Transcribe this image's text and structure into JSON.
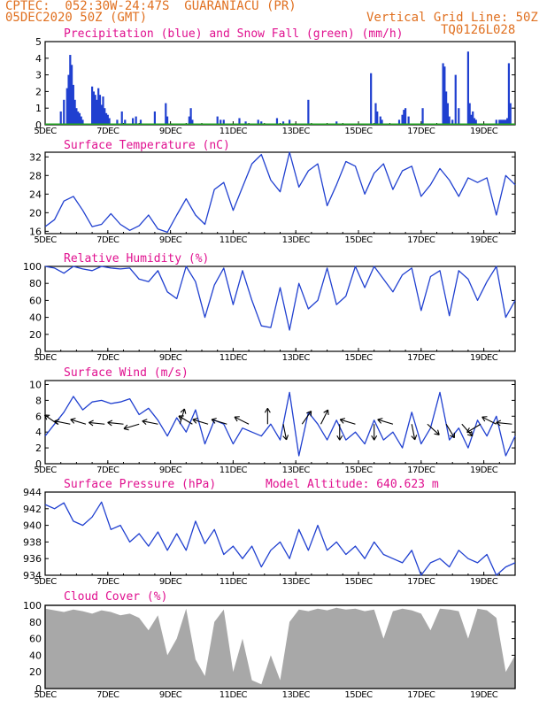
{
  "header": {
    "line1_left": "CPTEC:  052:30W-24:47S  GUARANIACU (PR)",
    "line2_left": "05DEC2020 50Z (GMT)",
    "line1_right": "Vertical Grid Line: 50Z",
    "line2_right": "TQ0126L028"
  },
  "x_tick_labels": [
    "5DEC",
    "7DEC",
    "9DEC",
    "11DEC",
    "13DEC",
    "15DEC",
    "17DEC",
    "19DEC"
  ],
  "panel_colors": {
    "series": "#2040d0",
    "snow": "#20a020",
    "cloud": "#a8a8a8",
    "title": "#e0108f",
    "header": "#e07020"
  },
  "chart_data": [
    {
      "id": "precip",
      "type": "bar",
      "title": "Precipitation (blue) and Snow Fall (green) (mm/h)",
      "ylim": [
        0,
        5
      ],
      "yticks": [
        "0",
        "1",
        "2",
        "3",
        "4",
        "5"
      ],
      "x_range_days": [
        5,
        20
      ],
      "series": [
        {
          "name": "Precipitation",
          "x": [
            5.5,
            5.6,
            5.7,
            5.75,
            5.8,
            5.85,
            5.9,
            5.95,
            6.0,
            6.05,
            6.1,
            6.15,
            6.2,
            6.5,
            6.55,
            6.6,
            6.65,
            6.7,
            6.75,
            6.8,
            6.85,
            6.9,
            6.95,
            7.0,
            7.05,
            7.3,
            7.45,
            7.55,
            7.8,
            7.9,
            8.05,
            8.5,
            8.85,
            8.9,
            9.6,
            9.65,
            9.7,
            10.5,
            10.6,
            10.7,
            11.2,
            11.4,
            11.8,
            11.9,
            12.4,
            12.6,
            12.8,
            13.4,
            14.3,
            15.4,
            15.55,
            15.6,
            15.7,
            15.75,
            16.3,
            16.4,
            16.45,
            16.5,
            16.6,
            17.05,
            17.7,
            17.75,
            17.8,
            17.85,
            17.9,
            18.0,
            18.1,
            18.2,
            18.5,
            18.55,
            18.6,
            18.65,
            18.7,
            18.75,
            19.4,
            19.5,
            19.55,
            19.6,
            19.65,
            19.7,
            19.75,
            19.8,
            19.85
          ],
          "values": [
            0.8,
            1.5,
            2.2,
            3.0,
            4.2,
            3.6,
            2.4,
            1.5,
            1.0,
            0.8,
            0.7,
            0.5,
            0.3,
            2.3,
            2.0,
            1.8,
            1.5,
            2.2,
            1.8,
            1.2,
            1.7,
            1.0,
            0.7,
            0.6,
            0.4,
            0.3,
            0.8,
            0.3,
            0.4,
            0.5,
            0.3,
            0.8,
            1.3,
            0.5,
            0.5,
            1.0,
            0.3,
            0.5,
            0.3,
            0.3,
            0.4,
            0.2,
            0.3,
            0.2,
            0.4,
            0.2,
            0.3,
            1.5,
            0.2,
            3.1,
            1.3,
            0.8,
            0.5,
            0.3,
            0.3,
            0.6,
            0.9,
            1.0,
            0.5,
            1.0,
            3.7,
            3.5,
            2.0,
            1.3,
            0.5,
            0.3,
            3.0,
            1.0,
            4.4,
            1.3,
            0.6,
            0.8,
            0.4,
            0.3,
            0.3,
            0.3,
            0.3,
            0.3,
            0.3,
            0.3,
            0.4,
            3.7,
            1.3
          ]
        },
        {
          "name": "Snow Fall",
          "x": [
            5,
            20
          ],
          "values": [
            0,
            0
          ]
        }
      ]
    },
    {
      "id": "temperature",
      "type": "line",
      "title": "Surface Temperature (nC)",
      "ylim": [
        15.5,
        33
      ],
      "yticks": [
        "16",
        "20",
        "24",
        "28",
        "32"
      ],
      "x": [
        5.0,
        5.3,
        5.6,
        5.9,
        6.2,
        6.5,
        6.8,
        7.1,
        7.4,
        7.7,
        8.0,
        8.3,
        8.6,
        8.9,
        9.2,
        9.5,
        9.8,
        10.1,
        10.4,
        10.7,
        11.0,
        11.3,
        11.6,
        11.9,
        12.2,
        12.5,
        12.8,
        13.1,
        13.4,
        13.7,
        14.0,
        14.3,
        14.6,
        14.9,
        15.2,
        15.5,
        15.8,
        16.1,
        16.4,
        16.7,
        17.0,
        17.3,
        17.6,
        17.9,
        18.2,
        18.5,
        18.8,
        19.1,
        19.4,
        19.7,
        20.0
      ],
      "values": [
        17,
        18.5,
        22.5,
        23.5,
        20.5,
        17,
        17.5,
        19.8,
        17.5,
        16.2,
        17.2,
        19.5,
        16.5,
        15.8,
        19.5,
        23,
        19.5,
        17.5,
        25,
        26.5,
        20.5,
        25.5,
        30.5,
        32.5,
        27,
        24.5,
        33,
        25.5,
        29,
        30.5,
        21.5,
        26,
        31,
        30,
        24,
        28.5,
        30.5,
        25,
        29,
        30,
        23.5,
        26,
        29.5,
        27,
        23.5,
        27.5,
        26.5,
        27.5,
        19.5,
        28,
        26
      ]
    },
    {
      "id": "humidity",
      "type": "line",
      "title": "Relative Humidity (%)",
      "ylim": [
        0,
        100
      ],
      "yticks": [
        "0",
        "20",
        "40",
        "60",
        "80",
        "100"
      ],
      "x": [
        5.0,
        5.3,
        5.6,
        5.9,
        6.2,
        6.5,
        6.8,
        7.1,
        7.4,
        7.7,
        8.0,
        8.3,
        8.6,
        8.9,
        9.2,
        9.5,
        9.8,
        10.1,
        10.4,
        10.7,
        11.0,
        11.3,
        11.6,
        11.9,
        12.2,
        12.5,
        12.8,
        13.1,
        13.4,
        13.7,
        14.0,
        14.3,
        14.6,
        14.9,
        15.2,
        15.5,
        15.8,
        16.1,
        16.4,
        16.7,
        17.0,
        17.3,
        17.6,
        17.9,
        18.2,
        18.5,
        18.8,
        19.1,
        19.4,
        19.7,
        20.0
      ],
      "values": [
        100,
        98,
        92,
        100,
        97,
        95,
        100,
        98,
        97,
        98,
        85,
        82,
        95,
        70,
        62,
        100,
        82,
        40,
        78,
        98,
        55,
        95,
        60,
        30,
        28,
        75,
        25,
        80,
        50,
        60,
        98,
        55,
        65,
        100,
        75,
        100,
        85,
        70,
        90,
        98,
        48,
        88,
        95,
        42,
        95,
        85,
        60,
        82,
        100,
        40,
        60
      ]
    },
    {
      "id": "wind",
      "type": "line",
      "title": "Surface Wind (m/s)",
      "ylim": [
        0,
        10.5
      ],
      "yticks": [
        "0",
        "2",
        "4",
        "6",
        "8",
        "10"
      ],
      "x": [
        5.0,
        5.3,
        5.6,
        5.9,
        6.2,
        6.5,
        6.8,
        7.1,
        7.4,
        7.7,
        8.0,
        8.3,
        8.6,
        8.9,
        9.2,
        9.5,
        9.8,
        10.1,
        10.4,
        10.7,
        11.0,
        11.3,
        11.6,
        11.9,
        12.2,
        12.5,
        12.8,
        13.1,
        13.4,
        13.7,
        14.0,
        14.3,
        14.6,
        14.9,
        15.2,
        15.5,
        15.8,
        16.1,
        16.4,
        16.7,
        17.0,
        17.3,
        17.6,
        17.9,
        18.2,
        18.5,
        18.8,
        19.1,
        19.4,
        19.7,
        20.0
      ],
      "values": [
        3.5,
        5,
        6.5,
        8.5,
        6.8,
        7.8,
        8,
        7.6,
        7.8,
        8.2,
        6.2,
        7,
        5.5,
        3.5,
        5.8,
        4,
        6.8,
        2.5,
        5.5,
        5,
        2.5,
        4.5,
        4,
        3.5,
        5,
        3,
        9,
        1,
        6.5,
        5,
        3,
        5.5,
        3,
        4,
        2.5,
        5.5,
        3,
        4,
        2,
        6.5,
        2.5,
        4.5,
        9,
        3,
        4.5,
        2,
        5.5,
        3.5,
        6,
        1,
        3.5
      ],
      "arrows": [
        {
          "x": 5.4,
          "dx": -1,
          "dy": 0.7
        },
        {
          "x": 5.8,
          "dx": -1,
          "dy": 0.2
        },
        {
          "x": 6.3,
          "dx": -1,
          "dy": 0.3
        },
        {
          "x": 6.9,
          "dx": -1,
          "dy": 0.1
        },
        {
          "x": 7.5,
          "dx": -1,
          "dy": 0.1
        },
        {
          "x": 8.0,
          "dx": -1,
          "dy": -0.3
        },
        {
          "x": 8.6,
          "dx": -1,
          "dy": 0.2
        },
        {
          "x": 9.3,
          "dx": 0.3,
          "dy": 1
        },
        {
          "x": 9.7,
          "dx": -1,
          "dy": 0.6
        },
        {
          "x": 10.2,
          "dx": -1,
          "dy": 0.3
        },
        {
          "x": 10.8,
          "dx": -1,
          "dy": 0.3
        },
        {
          "x": 11.5,
          "dx": -1,
          "dy": 0.5
        },
        {
          "x": 12.1,
          "dx": 0,
          "dy": 1
        },
        {
          "x": 12.6,
          "dx": 0.2,
          "dy": -1
        },
        {
          "x": 13.2,
          "dx": 0.7,
          "dy": 1
        },
        {
          "x": 13.8,
          "dx": 0.5,
          "dy": 1
        },
        {
          "x": 14.4,
          "dx": 0,
          "dy": -1
        },
        {
          "x": 14.9,
          "dx": -1,
          "dy": 0.3
        },
        {
          "x": 15.5,
          "dx": 0,
          "dy": -1
        },
        {
          "x": 16.1,
          "dx": -1,
          "dy": 0.3
        },
        {
          "x": 16.7,
          "dx": 0.2,
          "dy": -1
        },
        {
          "x": 17.2,
          "dx": 1,
          "dy": -0.9
        },
        {
          "x": 17.8,
          "dx": 0.6,
          "dy": -1
        },
        {
          "x": 18.3,
          "dx": 0.7,
          "dy": -0.8
        },
        {
          "x": 18.9,
          "dx": -1,
          "dy": -0.6
        },
        {
          "x": 19.4,
          "dx": -1,
          "dy": 0.5
        },
        {
          "x": 19.9,
          "dx": -1,
          "dy": 0.1
        }
      ]
    },
    {
      "id": "pressure",
      "type": "line",
      "title": "Surface Pressure (hPa)",
      "annotation": "Model Altitude: 640.623 m",
      "ylim": [
        934,
        944
      ],
      "yticks": [
        "934",
        "936",
        "938",
        "940",
        "942",
        "944"
      ],
      "x": [
        5.0,
        5.3,
        5.6,
        5.9,
        6.2,
        6.5,
        6.8,
        7.1,
        7.4,
        7.7,
        8.0,
        8.3,
        8.6,
        8.9,
        9.2,
        9.5,
        9.8,
        10.1,
        10.4,
        10.7,
        11.0,
        11.3,
        11.6,
        11.9,
        12.2,
        12.5,
        12.8,
        13.1,
        13.4,
        13.7,
        14.0,
        14.3,
        14.6,
        14.9,
        15.2,
        15.5,
        15.8,
        16.1,
        16.4,
        16.7,
        17.0,
        17.3,
        17.6,
        17.9,
        18.2,
        18.5,
        18.8,
        19.1,
        19.4,
        19.7,
        20.0
      ],
      "values": [
        942.5,
        942,
        942.7,
        940.5,
        940,
        941,
        942.8,
        939.5,
        940,
        938,
        939,
        937.5,
        939.2,
        937,
        939,
        937,
        940.5,
        937.8,
        939.5,
        936.5,
        937.5,
        936,
        937.5,
        935,
        937,
        938,
        936,
        939.5,
        937,
        940,
        937,
        938,
        936.5,
        937.5,
        936,
        938,
        936.5,
        936,
        935.5,
        937,
        934,
        935.5,
        936,
        935,
        937,
        936,
        935.5,
        936.5,
        934,
        935,
        935.5
      ]
    },
    {
      "id": "cloud",
      "type": "area",
      "title": "Cloud Cover (%)",
      "ylim": [
        0,
        100
      ],
      "yticks": [
        "0",
        "20",
        "40",
        "60",
        "80",
        "100"
      ],
      "x": [
        5.0,
        5.3,
        5.6,
        5.9,
        6.2,
        6.5,
        6.8,
        7.1,
        7.4,
        7.7,
        8.0,
        8.3,
        8.6,
        8.9,
        9.2,
        9.5,
        9.8,
        10.1,
        10.4,
        10.7,
        11.0,
        11.3,
        11.6,
        11.9,
        12.2,
        12.5,
        12.8,
        13.1,
        13.4,
        13.7,
        14.0,
        14.3,
        14.6,
        14.9,
        15.2,
        15.5,
        15.8,
        16.1,
        16.4,
        16.7,
        17.0,
        17.3,
        17.6,
        17.9,
        18.2,
        18.5,
        18.8,
        19.1,
        19.4,
        19.7,
        20.0
      ],
      "values": [
        96,
        94,
        92,
        95,
        93,
        90,
        94,
        92,
        88,
        90,
        85,
        70,
        88,
        40,
        60,
        96,
        35,
        15,
        80,
        95,
        20,
        60,
        10,
        5,
        40,
        10,
        80,
        95,
        93,
        96,
        94,
        97,
        95,
        96,
        93,
        95,
        60,
        93,
        96,
        94,
        90,
        70,
        96,
        95,
        93,
        60,
        96,
        94,
        85,
        20,
        40
      ]
    }
  ]
}
